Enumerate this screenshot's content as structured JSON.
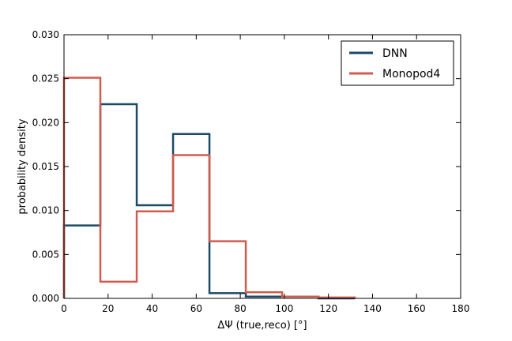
{
  "chart_data": {
    "type": "histogram-step",
    "xlabel": "ΔΨ (true,reco) [°]",
    "ylabel": "probability density",
    "xlim": [
      0,
      180
    ],
    "ylim": [
      0,
      0.03
    ],
    "xticks": [
      0,
      20,
      40,
      60,
      80,
      100,
      120,
      140,
      160,
      180
    ],
    "yticks": [
      0.0,
      0.005,
      0.01,
      0.015,
      0.02,
      0.025,
      0.03
    ],
    "ytick_labels": [
      "0.000",
      "0.005",
      "0.010",
      "0.015",
      "0.020",
      "0.025",
      "0.030"
    ],
    "grid": false,
    "legend_position": "top-right",
    "series": [
      {
        "name": "DNN",
        "color": "#1b4a66",
        "bin_edges": [
          0,
          16.5,
          33,
          49.5,
          66,
          82.5,
          99,
          115.5,
          132
        ],
        "values": [
          0.0083,
          0.0221,
          0.0106,
          0.0187,
          0.0006,
          0.0002,
          0.0002,
          0.0
        ]
      },
      {
        "name": "Monopod4",
        "color": "#cf5c4e",
        "bin_edges": [
          0,
          16.5,
          33,
          49.5,
          66,
          82.5,
          99,
          115.5,
          132
        ],
        "values": [
          0.0251,
          0.0019,
          0.0099,
          0.0163,
          0.0065,
          0.0007,
          0.0002,
          0.0001
        ]
      }
    ]
  }
}
